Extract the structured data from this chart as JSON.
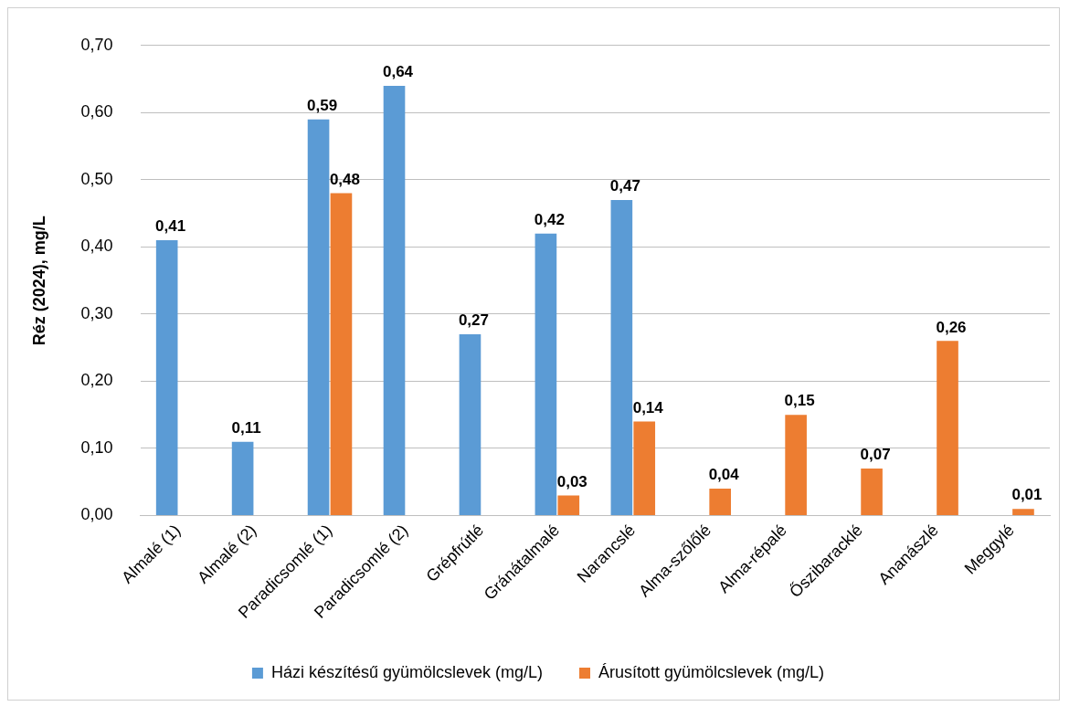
{
  "chart_data": {
    "type": "bar",
    "ylabel": "Réz (2024), mg/L",
    "categories": [
      "Almalé (1)",
      "Almalé (2)",
      "Paradicsomlé (1)",
      "Paradicsomlé (2)",
      "Grépfrútlé",
      "Gránátalmalé",
      "Narancslé",
      "Alma-szőlőlé",
      "Alma-répalé",
      "Őszibaracklé",
      "Ananászlé",
      "Meggylé"
    ],
    "series": [
      {
        "name": "Házi készítésű gyümölcslevek (mg/L)",
        "color": "#5b9bd5",
        "values": [
          0.41,
          0.11,
          0.59,
          0.64,
          0.27,
          0.42,
          0.47,
          null,
          null,
          null,
          null,
          null
        ],
        "value_labels": [
          "0,41",
          "0,11",
          "0,59",
          "0,64",
          "0,27",
          "0,42",
          "0,47",
          null,
          null,
          null,
          null,
          null
        ]
      },
      {
        "name": "Árusított gyümölcslevek (mg/L)",
        "color": "#ed7d31",
        "values": [
          null,
          null,
          0.48,
          null,
          null,
          0.03,
          0.14,
          0.04,
          0.15,
          0.07,
          0.26,
          0.01
        ],
        "value_labels": [
          null,
          null,
          "0,48",
          null,
          null,
          "0,03",
          "0,14",
          "0,04",
          "0,15",
          "0,07",
          "0,26",
          "0,01"
        ]
      }
    ],
    "ylim": [
      0,
      0.7
    ],
    "yticks": [
      {
        "value": 0,
        "label": "0,00"
      },
      {
        "value": 0.1,
        "label": "0,10"
      },
      {
        "value": 0.2,
        "label": "0,20"
      },
      {
        "value": 0.3,
        "label": "0,30"
      },
      {
        "value": 0.4,
        "label": "0,40"
      },
      {
        "value": 0.5,
        "label": "0,50"
      },
      {
        "value": 0.6,
        "label": "0,60"
      },
      {
        "value": 0.7,
        "label": "0,70"
      }
    ],
    "grid": "y",
    "legend": "bottom"
  }
}
